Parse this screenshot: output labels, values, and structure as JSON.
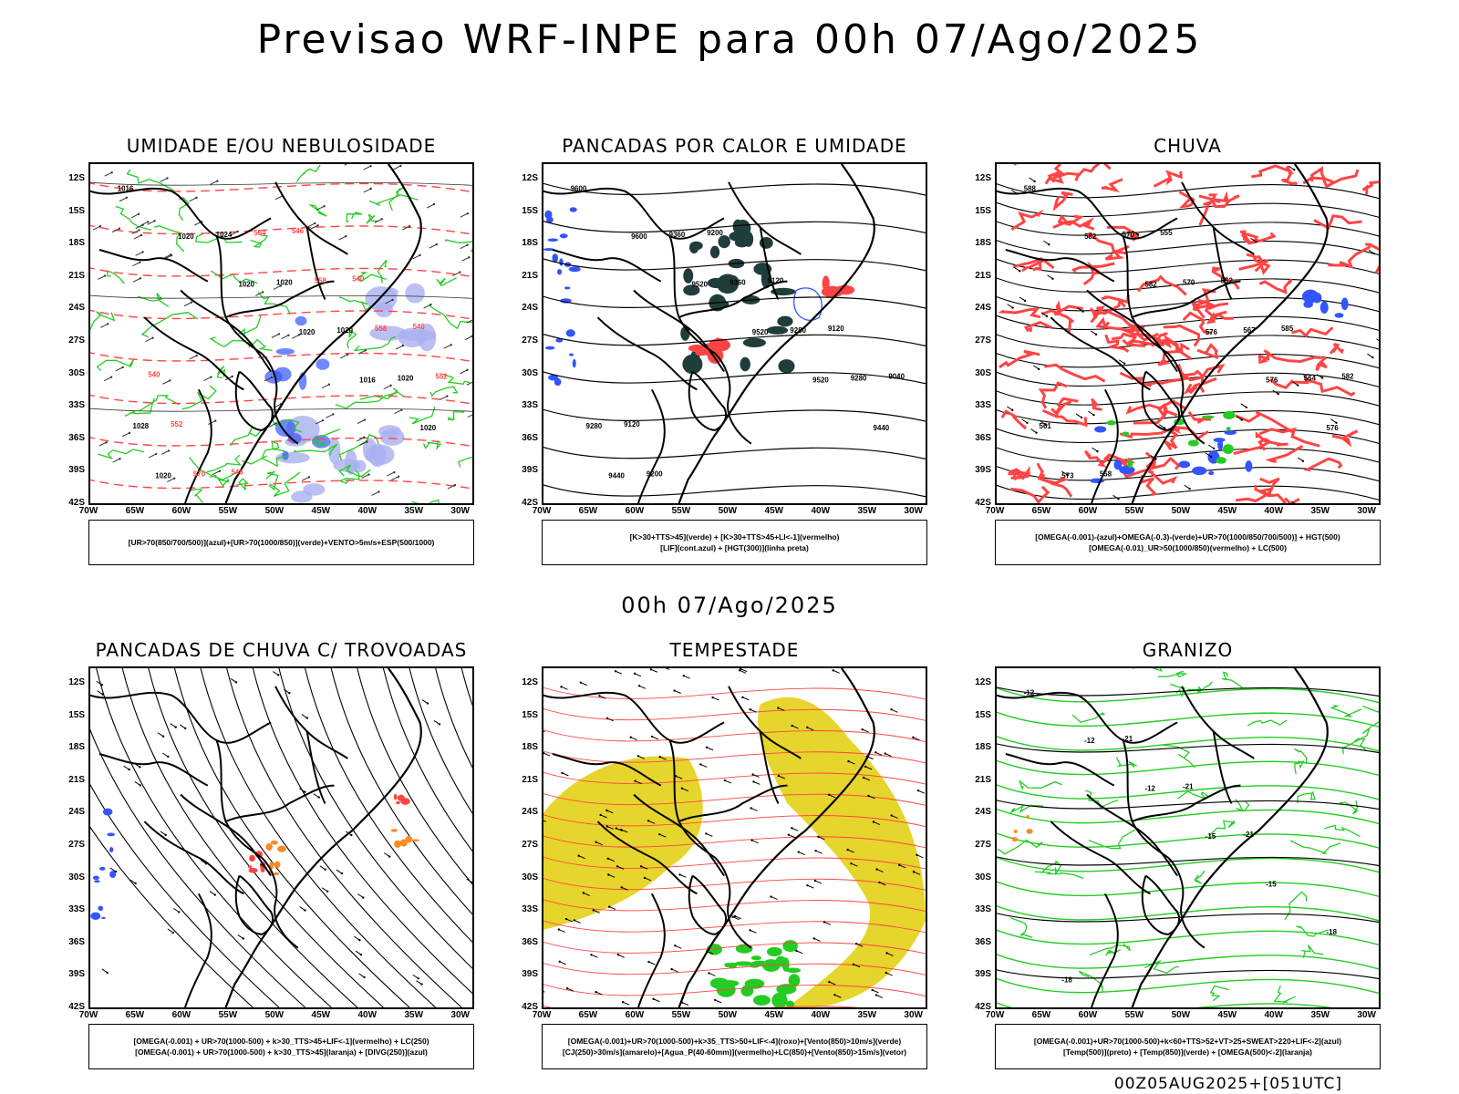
{
  "title": "Previsao WRF-INPE  para 00h 07/Ago/2025",
  "mid_title": "00h 07/Ago/2025",
  "footer": "00Z05AUG2025+[051UTC]",
  "lat_labels": [
    "12S",
    "15S",
    "18S",
    "21S",
    "24S",
    "27S",
    "30S",
    "33S",
    "36S",
    "39S",
    "42S"
  ],
  "lon_labels": [
    "70W",
    "65W",
    "60W",
    "55W",
    "50W",
    "45W",
    "40W",
    "35W",
    "30W"
  ],
  "panels": [
    {
      "title": "UMIDADE E/OU NEBULOSIDADE",
      "legend": [
        "[UR>70(850/700/500)](azul)+[UR>70(1000/850)](verde)+VENTO>5m/s+ESP(500/1000)"
      ],
      "labels": [
        "1016",
        "1020",
        "1020",
        "1020",
        "1016",
        "1020",
        "1020",
        "1024",
        "1020",
        "1020",
        "1020",
        "1028",
        "570",
        "564",
        "558",
        "558",
        "552",
        "552",
        "546",
        "546",
        "540",
        "540",
        "540"
      ]
    },
    {
      "title": "PANCADAS POR CALOR E UMIDADE",
      "legend": [
        "[K>30+TTS>45](verde) + [K>30+TTS>45+LI<-1](vermelho)",
        "[LIF](cont.azul) + [HGT(300)](linha preta)"
      ],
      "labels": [
        "9600",
        "9600",
        "9520",
        "9520",
        "9520",
        "9440",
        "9440",
        "9360",
        "9360",
        "9280",
        "9280",
        "9280",
        "9200",
        "9200",
        "9120",
        "9120",
        "9040",
        "9120"
      ]
    },
    {
      "title": "CHUVA",
      "legend": [
        "[OMEGA(-0.001)-(azul)+OMEGA(-0.3)-(verde)+UR>70(1000/850/700/500)] + HGT(500)",
        "[OMEGA(-0.01)_UR>50(1000/850)(vermelho) + LC(500)"
      ],
      "labels": [
        "588",
        "582",
        "582",
        "576",
        "576",
        "576",
        "573",
        "570",
        "570",
        "567",
        "564",
        "561",
        "558",
        "555",
        "552",
        "585",
        "582"
      ]
    },
    {
      "title": "PANCADAS DE CHUVA C/ TROVOADAS",
      "legend": [
        "[OMEGA(-0.001) + UR>70(1000-500) + k>30_TTS>45+LIF<-1](vermelho) + LC(250)",
        "[OMEGA(-0.001) + UR>70(1000-500) + k>30_TTS>45](laranja) + [DIVG(250)](azul)"
      ],
      "labels": []
    },
    {
      "title": "TEMPESTADE",
      "legend": [
        "[OMEGA(-0.001)+UR>70(1000-500)+k>35_TTS>50+LIF<-4](roxo)+[Vento(850)>10m/s](verde)",
        "[CJ(250)>30m/s](amarelo)+[Agua_P(40-60mm)](vermelho)+LC(850)+[Vento(850)>15m/s](vetor)"
      ],
      "labels": []
    },
    {
      "title": "GRANIZO",
      "legend": [
        "[OMEGA(-0.001)+UR>70(1000-500)+k<60+TTS>52+VT>25+SWEAT>220+LIF<-2](azul)",
        "[Temp(500)](preto) + [Temp(850)](verde) + [OMEGA(500)<-2](laranja)"
      ],
      "labels": [
        "-12",
        "-12",
        "-12",
        "-15",
        "-15",
        "-18",
        "-18",
        "-21",
        "-21",
        "-21"
      ]
    }
  ],
  "colors": {
    "coast": "#000000",
    "green": "#22cc22",
    "blue": "#3355ff",
    "lightblue": "#aab0f0",
    "red": "#ff4444",
    "darkteal": "#1f3d3a",
    "yellow": "#e6d52c",
    "orange": "#ff8a22"
  }
}
